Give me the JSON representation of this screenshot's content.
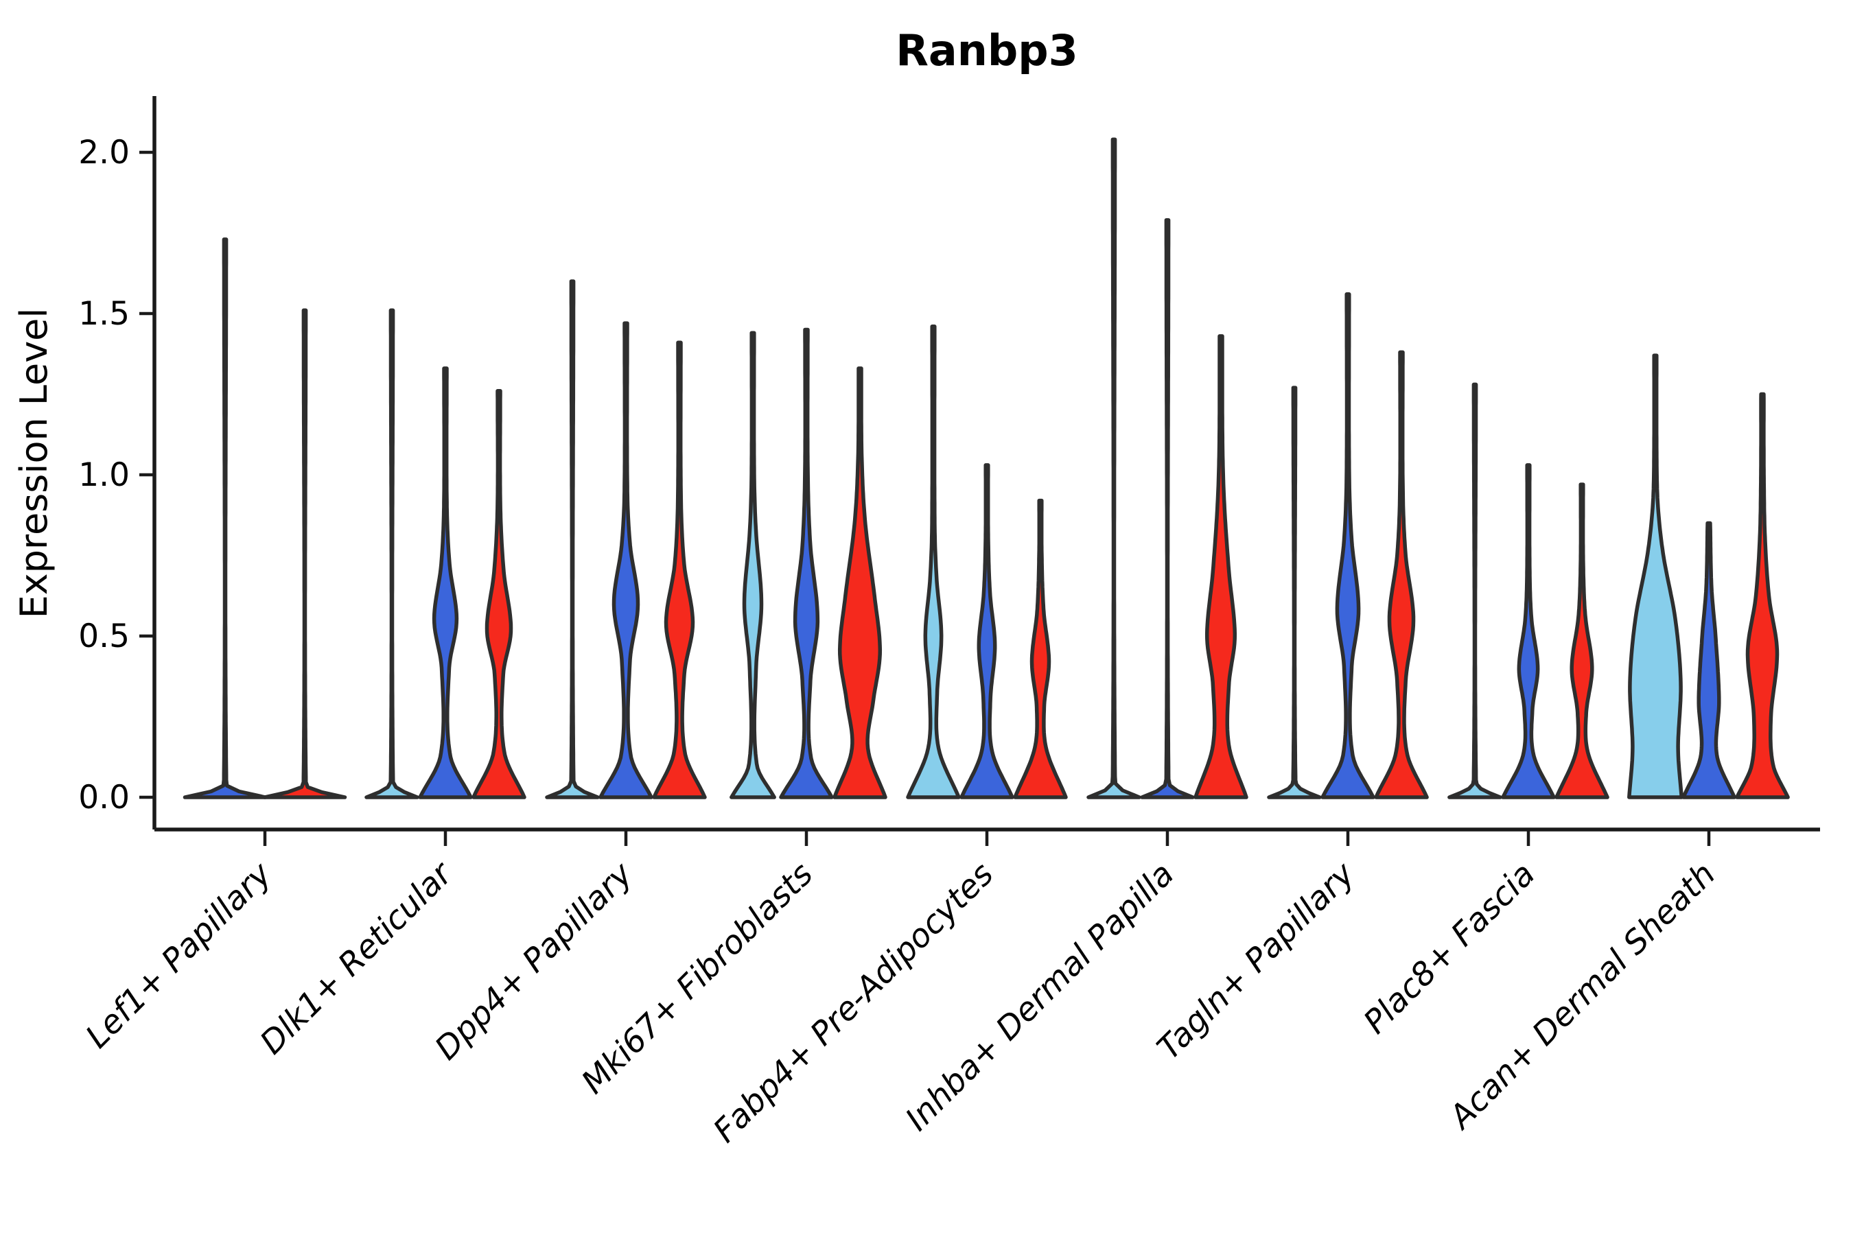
{
  "title": "Ranbp3",
  "chart_data": {
    "type": "violin",
    "title": "Ranbp3",
    "ylabel": "Expression Level",
    "xlabel": "",
    "ylim": [
      0,
      2.17
    ],
    "grid": false,
    "legend": "none",
    "yticks": [
      0.0,
      0.5,
      1.0,
      1.5,
      2.0
    ],
    "ytick_labels": [
      "0.0",
      "0.5",
      "1.0",
      "1.5",
      "2.0"
    ],
    "series_colors": {
      "lightblue": "#87CEEB",
      "blue": "#3B65DB",
      "red": "#F5291D"
    },
    "outline_color": "#2E2E2E",
    "axis_color": "#1A1A1A",
    "categories": [
      {
        "label": "Lef1+ Papillary",
        "violins": [
          {
            "color": "blue",
            "max": 1.73,
            "shape": "line",
            "profile": [
              [
                0,
                1.5
              ],
              [
                0.025,
                0.25
              ],
              [
                0.05,
                0.045
              ],
              [
                1.73,
                0.04
              ]
            ]
          },
          {
            "color": "red",
            "max": 1.51,
            "shape": "line",
            "profile": [
              [
                0,
                1.5
              ],
              [
                0.025,
                0.25
              ],
              [
                0.05,
                0.045
              ],
              [
                1.51,
                0.04
              ]
            ]
          }
        ]
      },
      {
        "label": "Dlk1+ Reticular",
        "violins": [
          {
            "color": "lightblue",
            "max": 1.51,
            "shape": "line",
            "profile": [
              [
                0,
                0.95
              ],
              [
                0.025,
                0.25
              ],
              [
                0.05,
                0.045
              ],
              [
                1.51,
                0.04
              ]
            ]
          },
          {
            "color": "blue",
            "max": 1.33,
            "shape": "bulge",
            "profile": [
              [
                0,
                0.95
              ],
              [
                0.13,
                0.18
              ],
              [
                0.4,
                0.14
              ],
              [
                0.55,
                0.42
              ],
              [
                0.72,
                0.16
              ],
              [
                0.9,
                0.055
              ],
              [
                1.33,
                0.05
              ]
            ]
          },
          {
            "color": "red",
            "max": 1.26,
            "shape": "bulge",
            "profile": [
              [
                0,
                0.95
              ],
              [
                0.14,
                0.2
              ],
              [
                0.38,
                0.16
              ],
              [
                0.52,
                0.45
              ],
              [
                0.7,
                0.18
              ],
              [
                0.9,
                0.055
              ],
              [
                1.26,
                0.05
              ]
            ]
          }
        ]
      },
      {
        "label": "Dpp4+ Papillary",
        "violins": [
          {
            "color": "lightblue",
            "max": 1.6,
            "shape": "line",
            "profile": [
              [
                0,
                0.95
              ],
              [
                0.025,
                0.25
              ],
              [
                0.05,
                0.045
              ],
              [
                1.6,
                0.04
              ]
            ]
          },
          {
            "color": "blue",
            "max": 1.47,
            "shape": "bulge",
            "profile": [
              [
                0,
                0.95
              ],
              [
                0.13,
                0.18
              ],
              [
                0.42,
                0.15
              ],
              [
                0.6,
                0.45
              ],
              [
                0.78,
                0.16
              ],
              [
                0.95,
                0.055
              ],
              [
                1.47,
                0.05
              ]
            ]
          },
          {
            "color": "red",
            "max": 1.41,
            "shape": "bulge",
            "profile": [
              [
                0,
                0.95
              ],
              [
                0.14,
                0.2
              ],
              [
                0.38,
                0.18
              ],
              [
                0.54,
                0.5
              ],
              [
                0.72,
                0.18
              ],
              [
                0.92,
                0.06
              ],
              [
                1.41,
                0.05
              ]
            ]
          }
        ]
      },
      {
        "label": "Mki67+ Fibroblasts",
        "violins": [
          {
            "color": "lightblue",
            "max": 1.44,
            "shape": "bulge",
            "profile": [
              [
                0,
                0.8
              ],
              [
                0.1,
                0.15
              ],
              [
                0.4,
                0.12
              ],
              [
                0.6,
                0.32
              ],
              [
                0.82,
                0.12
              ],
              [
                1.0,
                0.05
              ],
              [
                1.44,
                0.045
              ]
            ]
          },
          {
            "color": "blue",
            "max": 1.45,
            "shape": "bulge",
            "profile": [
              [
                0,
                0.95
              ],
              [
                0.12,
                0.18
              ],
              [
                0.36,
                0.15
              ],
              [
                0.55,
                0.42
              ],
              [
                0.78,
                0.15
              ],
              [
                1.0,
                0.055
              ],
              [
                1.45,
                0.05
              ]
            ]
          },
          {
            "color": "red",
            "max": 1.33,
            "shape": "bulge-wide",
            "profile": [
              [
                0,
                0.95
              ],
              [
                0.15,
                0.3
              ],
              [
                0.3,
                0.5
              ],
              [
                0.45,
                0.75
              ],
              [
                0.62,
                0.55
              ],
              [
                0.85,
                0.2
              ],
              [
                1.05,
                0.07
              ],
              [
                1.33,
                0.05
              ]
            ]
          }
        ]
      },
      {
        "label": "Fabp4+ Pre-Adipocytes",
        "violins": [
          {
            "color": "lightblue",
            "max": 1.46,
            "shape": "bulge",
            "profile": [
              [
                0,
                0.95
              ],
              [
                0.15,
                0.2
              ],
              [
                0.32,
                0.14
              ],
              [
                0.5,
                0.3
              ],
              [
                0.68,
                0.12
              ],
              [
                0.85,
                0.05
              ],
              [
                1.46,
                0.045
              ]
            ]
          },
          {
            "color": "blue",
            "max": 1.03,
            "shape": "bulge",
            "profile": [
              [
                0,
                0.95
              ],
              [
                0.14,
                0.2
              ],
              [
                0.3,
                0.13
              ],
              [
                0.47,
                0.3
              ],
              [
                0.63,
                0.12
              ],
              [
                0.8,
                0.05
              ],
              [
                1.03,
                0.045
              ]
            ]
          },
          {
            "color": "red",
            "max": 0.92,
            "shape": "bulge",
            "profile": [
              [
                0,
                0.95
              ],
              [
                0.15,
                0.22
              ],
              [
                0.28,
                0.14
              ],
              [
                0.42,
                0.32
              ],
              [
                0.58,
                0.12
              ],
              [
                0.75,
                0.05
              ],
              [
                0.92,
                0.045
              ]
            ]
          }
        ]
      },
      {
        "label": "Inhba+ Dermal Papilla",
        "violins": [
          {
            "color": "lightblue",
            "max": 2.04,
            "shape": "line",
            "profile": [
              [
                0,
                0.95
              ],
              [
                0.025,
                0.25
              ],
              [
                0.05,
                0.045
              ],
              [
                2.04,
                0.04
              ]
            ]
          },
          {
            "color": "blue",
            "max": 1.79,
            "shape": "line",
            "profile": [
              [
                0,
                0.95
              ],
              [
                0.025,
                0.25
              ],
              [
                0.05,
                0.045
              ],
              [
                1.79,
                0.04
              ]
            ]
          },
          {
            "color": "red",
            "max": 1.43,
            "shape": "bulge",
            "profile": [
              [
                0,
                0.95
              ],
              [
                0.16,
                0.3
              ],
              [
                0.35,
                0.3
              ],
              [
                0.5,
                0.52
              ],
              [
                0.7,
                0.3
              ],
              [
                0.92,
                0.12
              ],
              [
                1.1,
                0.06
              ],
              [
                1.43,
                0.05
              ]
            ]
          }
        ]
      },
      {
        "label": "Tagln+ Papillary",
        "violins": [
          {
            "color": "lightblue",
            "max": 1.27,
            "shape": "line",
            "profile": [
              [
                0,
                0.95
              ],
              [
                0.025,
                0.25
              ],
              [
                0.05,
                0.045
              ],
              [
                1.27,
                0.04
              ]
            ]
          },
          {
            "color": "blue",
            "max": 1.56,
            "shape": "bulge",
            "profile": [
              [
                0,
                0.95
              ],
              [
                0.13,
                0.18
              ],
              [
                0.4,
                0.14
              ],
              [
                0.58,
                0.4
              ],
              [
                0.8,
                0.14
              ],
              [
                1.0,
                0.05
              ],
              [
                1.56,
                0.045
              ]
            ]
          },
          {
            "color": "red",
            "max": 1.38,
            "shape": "bulge",
            "profile": [
              [
                0,
                0.95
              ],
              [
                0.14,
                0.2
              ],
              [
                0.36,
                0.16
              ],
              [
                0.55,
                0.45
              ],
              [
                0.75,
                0.16
              ],
              [
                0.95,
                0.055
              ],
              [
                1.38,
                0.05
              ]
            ]
          }
        ]
      },
      {
        "label": "Plac8+ Fascia",
        "violins": [
          {
            "color": "lightblue",
            "max": 1.28,
            "shape": "line",
            "profile": [
              [
                0,
                0.95
              ],
              [
                0.025,
                0.25
              ],
              [
                0.05,
                0.045
              ],
              [
                1.28,
                0.04
              ]
            ]
          },
          {
            "color": "blue",
            "max": 1.03,
            "shape": "bulge",
            "profile": [
              [
                0,
                0.95
              ],
              [
                0.13,
                0.2
              ],
              [
                0.27,
                0.15
              ],
              [
                0.4,
                0.35
              ],
              [
                0.55,
                0.12
              ],
              [
                0.7,
                0.05
              ],
              [
                1.03,
                0.045
              ]
            ]
          },
          {
            "color": "red",
            "max": 0.97,
            "shape": "bulge",
            "profile": [
              [
                0,
                0.95
              ],
              [
                0.14,
                0.22
              ],
              [
                0.26,
                0.16
              ],
              [
                0.4,
                0.38
              ],
              [
                0.56,
                0.13
              ],
              [
                0.72,
                0.05
              ],
              [
                0.97,
                0.045
              ]
            ]
          }
        ]
      },
      {
        "label": "Acan+ Dermal Sheath",
        "violins": [
          {
            "color": "lightblue",
            "max": 1.37,
            "shape": "bulge-wide",
            "profile": [
              [
                0,
                0.98
              ],
              [
                0.15,
                0.85
              ],
              [
                0.35,
                0.95
              ],
              [
                0.55,
                0.75
              ],
              [
                0.75,
                0.3
              ],
              [
                0.9,
                0.1
              ],
              [
                1.05,
                0.05
              ],
              [
                1.37,
                0.045
              ]
            ]
          },
          {
            "color": "blue",
            "max": 0.85,
            "shape": "bulge",
            "profile": [
              [
                0,
                0.95
              ],
              [
                0.13,
                0.3
              ],
              [
                0.3,
                0.38
              ],
              [
                0.5,
                0.25
              ],
              [
                0.65,
                0.1
              ],
              [
                0.85,
                0.05
              ]
            ]
          },
          {
            "color": "red",
            "max": 1.25,
            "shape": "bulge-wide",
            "profile": [
              [
                0,
                0.95
              ],
              [
                0.1,
                0.4
              ],
              [
                0.25,
                0.32
              ],
              [
                0.45,
                0.55
              ],
              [
                0.62,
                0.25
              ],
              [
                0.8,
                0.1
              ],
              [
                1.0,
                0.055
              ],
              [
                1.25,
                0.05
              ]
            ]
          }
        ]
      }
    ]
  }
}
